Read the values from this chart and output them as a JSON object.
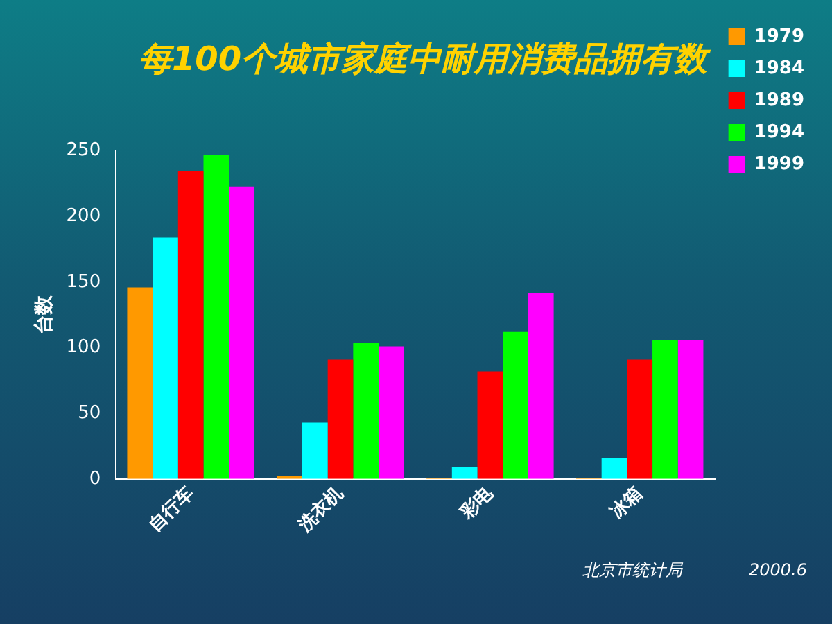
{
  "chart_data": {
    "type": "bar",
    "title": "每100个城市家庭中耐用消费品拥有数",
    "ylabel": "台数",
    "categories": [
      "自行车",
      "洗衣机",
      "彩电",
      "冰箱"
    ],
    "series": [
      {
        "name": "1979",
        "color": "#ff9900",
        "values": [
          146,
          2,
          1,
          1
        ]
      },
      {
        "name": "1984",
        "color": "#00ffff",
        "values": [
          184,
          43,
          9,
          16
        ]
      },
      {
        "name": "1989",
        "color": "#ff0000",
        "values": [
          235,
          91,
          82,
          91
        ]
      },
      {
        "name": "1994",
        "color": "#00ff00",
        "values": [
          247,
          104,
          112,
          106
        ]
      },
      {
        "name": "1999",
        "color": "#ff00ff",
        "values": [
          223,
          101,
          142,
          106
        ]
      }
    ],
    "ylim": [
      0,
      250
    ],
    "yticks": [
      0,
      50,
      100,
      150,
      200,
      250
    ],
    "grid": false,
    "legend": "top right",
    "annotations": [
      "北京市统计局",
      "2000.6"
    ]
  }
}
